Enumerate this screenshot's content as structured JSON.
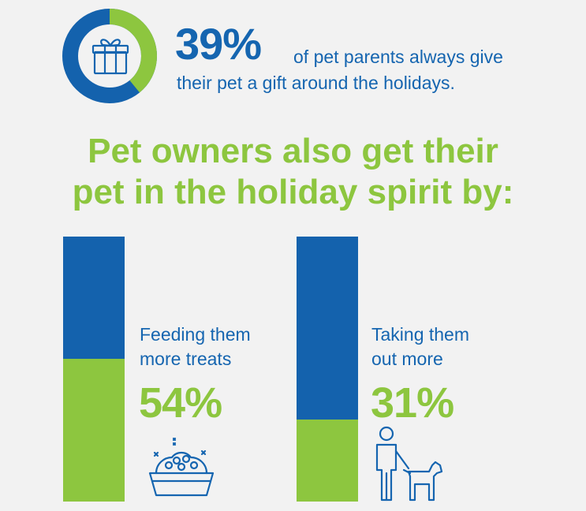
{
  "top_stat": {
    "value_text": "39%",
    "value": 39,
    "line1": "of pet parents always give",
    "line2": "their pet a gift around the holidays.",
    "ring_color": "#1462ad",
    "fill_color": "#8dc63f",
    "icon": "gift-icon"
  },
  "headline": {
    "line1": "Pet owners also get their",
    "line2": "pet in the holiday spirit by:"
  },
  "chart_data": {
    "type": "bar",
    "categories": [
      "Feeding them more treats",
      "Taking them out more"
    ],
    "values": [
      54,
      31
    ],
    "ylim": [
      0,
      100
    ],
    "colors": {
      "value": "#8dc63f",
      "remainder": "#1462ad"
    },
    "bars": [
      {
        "label_line1": "Feeding them",
        "label_line2": "more treats",
        "value": 54,
        "value_text": "54%",
        "icon": "pet-food-bowl-icon"
      },
      {
        "label_line1": "Taking them",
        "label_line2": "out more",
        "value": 31,
        "value_text": "31%",
        "icon": "person-walking-dog-icon"
      }
    ]
  }
}
